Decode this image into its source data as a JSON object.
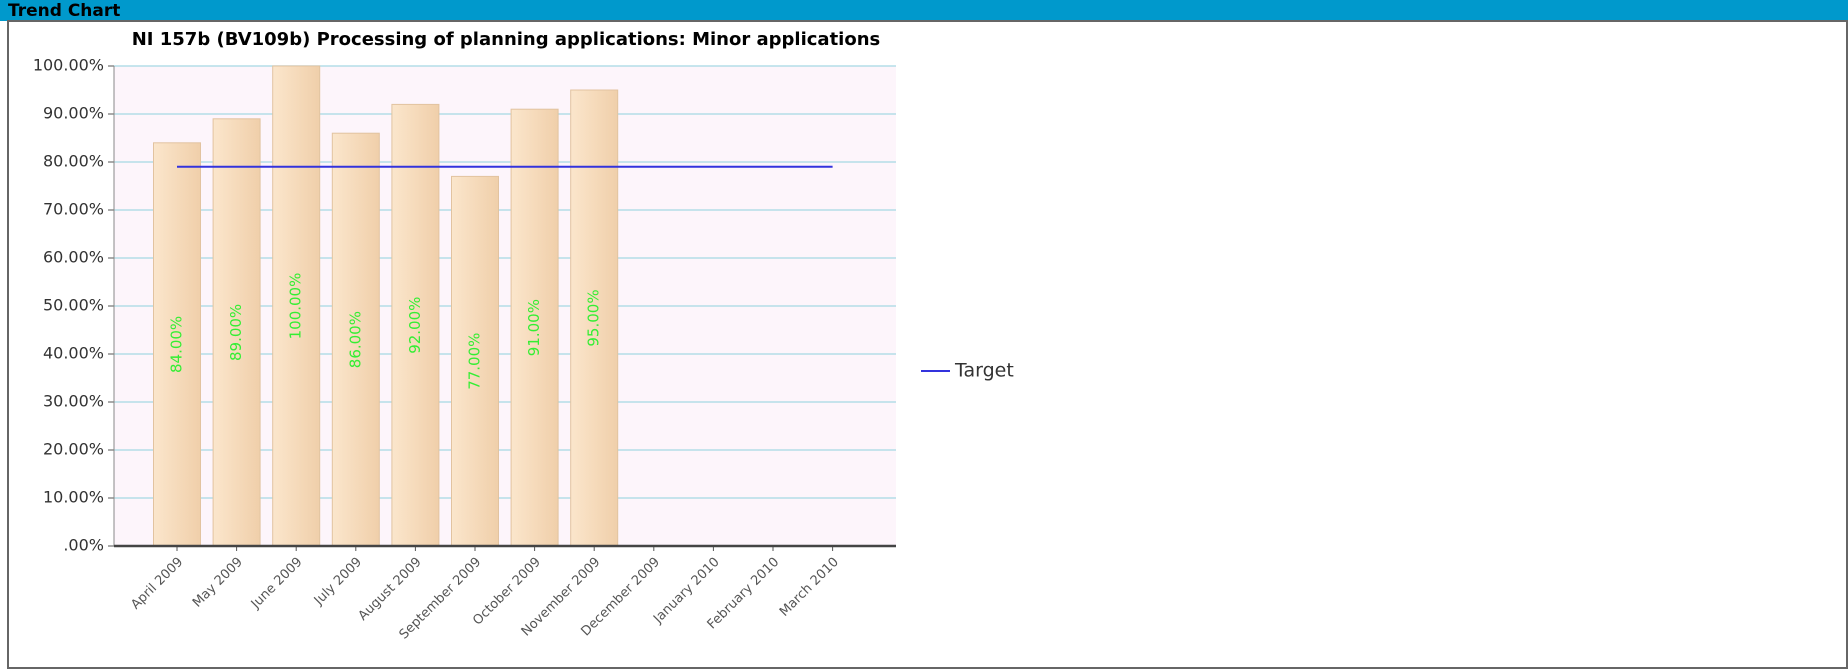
{
  "header": {
    "title": "Trend Chart"
  },
  "chart_data": {
    "type": "bar",
    "title": "NI 157b (BV109b) Processing of planning applications: Minor applications",
    "categories": [
      "April 2009",
      "May 2009",
      "June 2009",
      "July 2009",
      "August 2009",
      "September 2009",
      "October 2009",
      "November 2009",
      "December 2009",
      "January 2010",
      "February 2010",
      "March 2010"
    ],
    "values": [
      84,
      89,
      100,
      86,
      92,
      77,
      91,
      95,
      null,
      null,
      null,
      null
    ],
    "value_labels": [
      "84.00%",
      "89.00%",
      "100.00%",
      "86.00%",
      "92.00%",
      "77.00%",
      "91.00%",
      "95.00%",
      null,
      null,
      null,
      null
    ],
    "color": "#f7dab8",
    "value_label_color": "#33ee33",
    "series": [
      {
        "name": "Target",
        "type": "line",
        "color": "#3333dd",
        "values": [
          79,
          79,
          79,
          79,
          79,
          79,
          79,
          79,
          79,
          79,
          79,
          79
        ]
      }
    ],
    "ylim": [
      0,
      100
    ],
    "yticks": [
      {
        "value": 0,
        "label": ".00%"
      },
      {
        "value": 10,
        "label": "10.00%"
      },
      {
        "value": 20,
        "label": "20.00%"
      },
      {
        "value": 30,
        "label": "30.00%"
      },
      {
        "value": 40,
        "label": "40.00%"
      },
      {
        "value": 50,
        "label": "50.00%"
      },
      {
        "value": 60,
        "label": "60.00%"
      },
      {
        "value": 70,
        "label": "70.00%"
      },
      {
        "value": 80,
        "label": "80.00%"
      },
      {
        "value": 90,
        "label": "90.00%"
      },
      {
        "value": 100,
        "label": "100.00%"
      }
    ],
    "grid": true,
    "legend": "right"
  }
}
